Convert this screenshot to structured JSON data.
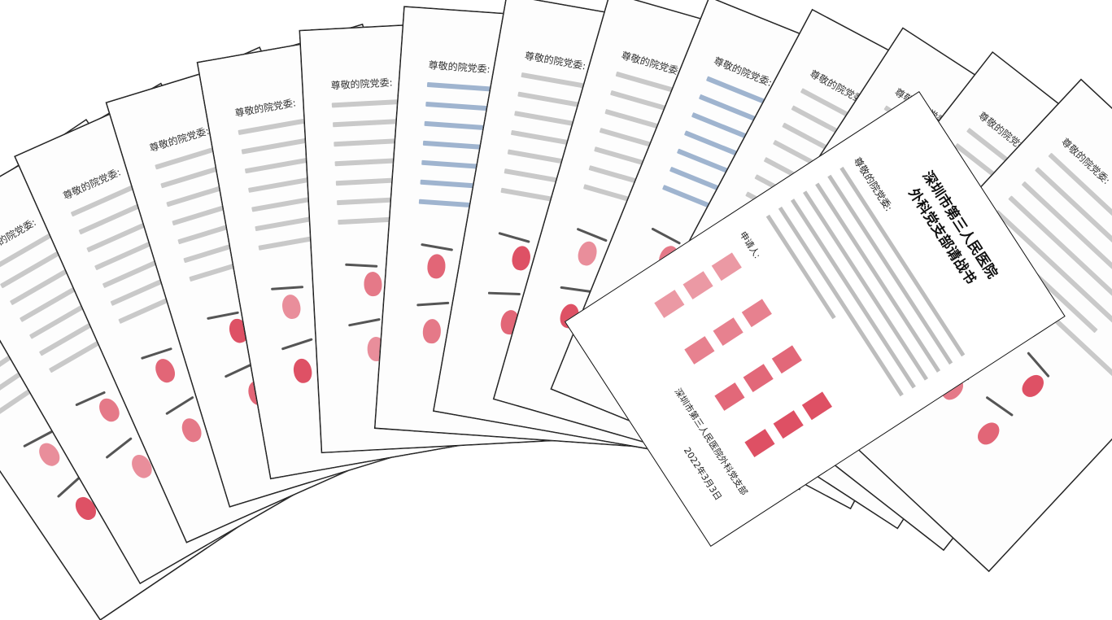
{
  "document": {
    "greeting": "尊敬的院党委:",
    "letter_title_line1": "深圳市第三人民医院",
    "letter_title_line2": "外科党支部请战书",
    "applicant_label": "申请人:",
    "signature_org": "深圳市第三人民医院外科党支部",
    "signature_date": "2022年3月3日"
  },
  "colors": {
    "fingerprint": "#d8334a",
    "ink": "#222222",
    "paper": "#fdfdfd"
  }
}
